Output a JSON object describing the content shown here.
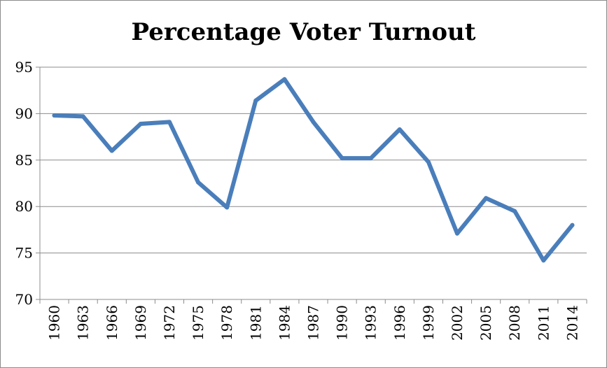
{
  "chart_data": {
    "type": "line",
    "title": "Percentage Voter Turnout",
    "xlabel": "",
    "ylabel": "",
    "categories": [
      "1960",
      "1963",
      "1966",
      "1969",
      "1972",
      "1975",
      "1978",
      "1981",
      "1984",
      "1987",
      "1990",
      "1993",
      "1996",
      "1999",
      "2002",
      "2005",
      "2008",
      "2011",
      "2014"
    ],
    "series": [
      {
        "values": [
          89.8,
          89.7,
          86.0,
          88.9,
          89.1,
          82.6,
          79.9,
          91.4,
          93.7,
          89.1,
          85.2,
          85.2,
          88.3,
          84.8,
          77.1,
          80.9,
          79.5,
          74.2,
          78.0
        ],
        "color": "#4a7ebb"
      }
    ],
    "ylim": [
      70,
      95
    ],
    "yticks": [
      "70",
      "75",
      "80",
      "85",
      "90",
      "95"
    ],
    "grid": true,
    "legend": "none"
  }
}
